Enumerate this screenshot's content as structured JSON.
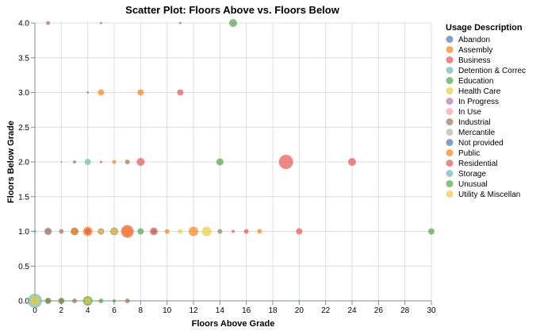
{
  "chart_data": {
    "type": "scatter",
    "title": "Scatter Plot: Floors Above vs. Floors Below",
    "xlabel": "Floors Above Grade",
    "ylabel": "Floors Below Grade",
    "xlim": [
      0,
      30
    ],
    "ylim": [
      0,
      4
    ],
    "x_ticks": [
      "0",
      "2",
      "4",
      "6",
      "8",
      "10",
      "12",
      "14",
      "16",
      "18",
      "20",
      "22",
      "24",
      "26",
      "28",
      "30"
    ],
    "y_ticks": [
      "0.0",
      "0.5",
      "1.0",
      "1.5",
      "2.0",
      "2.5",
      "3.0",
      "3.5",
      "4.0"
    ],
    "grid": true,
    "legend": {
      "title": "Usage Description",
      "placement": "right",
      "entries": [
        {
          "name": "Abandon",
          "color": "#4c78a8"
        },
        {
          "name": "Assembly",
          "color": "#f58518"
        },
        {
          "name": "Business",
          "color": "#e45756"
        },
        {
          "name": "Detention & Correc",
          "color": "#72b7b2"
        },
        {
          "name": "Education",
          "color": "#54a24b"
        },
        {
          "name": "Health Care",
          "color": "#eeca3b"
        },
        {
          "name": "In Progress",
          "color": "#b279a2"
        },
        {
          "name": "In Use",
          "color": "#ff9da6"
        },
        {
          "name": "Industrial",
          "color": "#9d755d"
        },
        {
          "name": "Mercantile",
          "color": "#bab0ac"
        },
        {
          "name": "Not provided",
          "color": "#4c78a8"
        },
        {
          "name": "Public",
          "color": "#f58518"
        },
        {
          "name": "Residential",
          "color": "#e45756"
        },
        {
          "name": "Storage",
          "color": "#72b7b2"
        },
        {
          "name": "Unusual",
          "color": "#54a24b"
        },
        {
          "name": "Utility & Miscellan",
          "color": "#eeca3b"
        }
      ]
    },
    "points": [
      {
        "x": 0,
        "y": 0,
        "series": "Storage",
        "size": 9
      },
      {
        "x": 0,
        "y": 0,
        "series": "Utility & Miscellan",
        "size": 6
      },
      {
        "x": 0,
        "y": 1,
        "series": "Storage",
        "size": 2
      },
      {
        "x": 1,
        "y": 0,
        "series": "Education",
        "size": 4
      },
      {
        "x": 1,
        "y": 0,
        "series": "Industrial",
        "size": 3
      },
      {
        "x": 2,
        "y": 0,
        "series": "Education",
        "size": 4
      },
      {
        "x": 2,
        "y": 0,
        "series": "Industrial",
        "size": 3
      },
      {
        "x": 3,
        "y": 0,
        "series": "Industrial",
        "size": 3
      },
      {
        "x": 4,
        "y": 0,
        "series": "Education",
        "size": 6
      },
      {
        "x": 4,
        "y": 0,
        "series": "Utility & Miscellan",
        "size": 4
      },
      {
        "x": 5,
        "y": 0,
        "series": "Education",
        "size": 3
      },
      {
        "x": 6,
        "y": 0,
        "series": "Education",
        "size": 2
      },
      {
        "x": 7,
        "y": 0,
        "series": "Industrial",
        "size": 3
      },
      {
        "x": 10,
        "y": 0,
        "series": "Storage",
        "size": 1
      },
      {
        "x": 20,
        "y": 0,
        "series": "Storage",
        "size": 1.5
      },
      {
        "x": 1,
        "y": 1,
        "series": "Industrial",
        "size": 4
      },
      {
        "x": 1,
        "y": 1,
        "series": "Mercantile",
        "size": 5
      },
      {
        "x": 2,
        "y": 1,
        "series": "Industrial",
        "size": 3
      },
      {
        "x": 3,
        "y": 1,
        "series": "Assembly",
        "size": 4
      },
      {
        "x": 3,
        "y": 1,
        "series": "Industrial",
        "size": 5
      },
      {
        "x": 4,
        "y": 1,
        "series": "Business",
        "size": 4
      },
      {
        "x": 4,
        "y": 1,
        "series": "Public",
        "size": 6
      },
      {
        "x": 5,
        "y": 1,
        "series": "Industrial",
        "size": 4
      },
      {
        "x": 5,
        "y": 1,
        "series": "Utility & Miscellan",
        "size": 3
      },
      {
        "x": 6,
        "y": 1,
        "series": "Industrial",
        "size": 5
      },
      {
        "x": 6,
        "y": 1,
        "series": "Utility & Miscellan",
        "size": 4
      },
      {
        "x": 7,
        "y": 1,
        "series": "Business",
        "size": 8
      },
      {
        "x": 7,
        "y": 1,
        "series": "Assembly",
        "size": 6
      },
      {
        "x": 8,
        "y": 1,
        "series": "Education",
        "size": 4
      },
      {
        "x": 9,
        "y": 1,
        "series": "Business",
        "size": 5
      },
      {
        "x": 9,
        "y": 1,
        "series": "Industrial",
        "size": 3
      },
      {
        "x": 10,
        "y": 1,
        "series": "Assembly",
        "size": 3
      },
      {
        "x": 11,
        "y": 1,
        "series": "Health Care",
        "size": 3
      },
      {
        "x": 12,
        "y": 1,
        "series": "Assembly",
        "size": 6
      },
      {
        "x": 13,
        "y": 1,
        "series": "Health Care",
        "size": 6
      },
      {
        "x": 14,
        "y": 1,
        "series": "Industrial",
        "size": 3
      },
      {
        "x": 15,
        "y": 1,
        "series": "Business",
        "size": 2
      },
      {
        "x": 16,
        "y": 1,
        "series": "Business",
        "size": 3
      },
      {
        "x": 17,
        "y": 1,
        "series": "Public",
        "size": 3
      },
      {
        "x": 20,
        "y": 1,
        "series": "Business",
        "size": 4
      },
      {
        "x": 30,
        "y": 1,
        "series": "Education",
        "size": 4
      },
      {
        "x": 2,
        "y": 2,
        "series": "Industrial",
        "size": 1
      },
      {
        "x": 3,
        "y": 2,
        "series": "Industrial",
        "size": 2
      },
      {
        "x": 4,
        "y": 2,
        "series": "Storage",
        "size": 4
      },
      {
        "x": 5,
        "y": 2,
        "series": "Business",
        "size": 1.5
      },
      {
        "x": 6,
        "y": 2,
        "series": "Public",
        "size": 2.5
      },
      {
        "x": 7,
        "y": 2,
        "series": "Industrial",
        "size": 3
      },
      {
        "x": 8,
        "y": 2,
        "series": "Business",
        "size": 5
      },
      {
        "x": 14,
        "y": 2,
        "series": "Education",
        "size": 4.5
      },
      {
        "x": 19,
        "y": 2,
        "series": "Residential",
        "size": 9
      },
      {
        "x": 24,
        "y": 2,
        "series": "Business",
        "size": 5
      },
      {
        "x": 4,
        "y": 3,
        "series": "Industrial",
        "size": 1.5
      },
      {
        "x": 5,
        "y": 3,
        "series": "Assembly",
        "size": 4
      },
      {
        "x": 8,
        "y": 3,
        "series": "Assembly",
        "size": 4
      },
      {
        "x": 11,
        "y": 3,
        "series": "Business",
        "size": 4
      },
      {
        "x": 1,
        "y": 4,
        "series": "Industrial",
        "size": 2.5
      },
      {
        "x": 5,
        "y": 4,
        "series": "Industrial",
        "size": 1.5
      },
      {
        "x": 11,
        "y": 4,
        "series": "Education",
        "size": 1.5
      },
      {
        "x": 15,
        "y": 4,
        "series": "Education",
        "size": 5
      }
    ]
  }
}
